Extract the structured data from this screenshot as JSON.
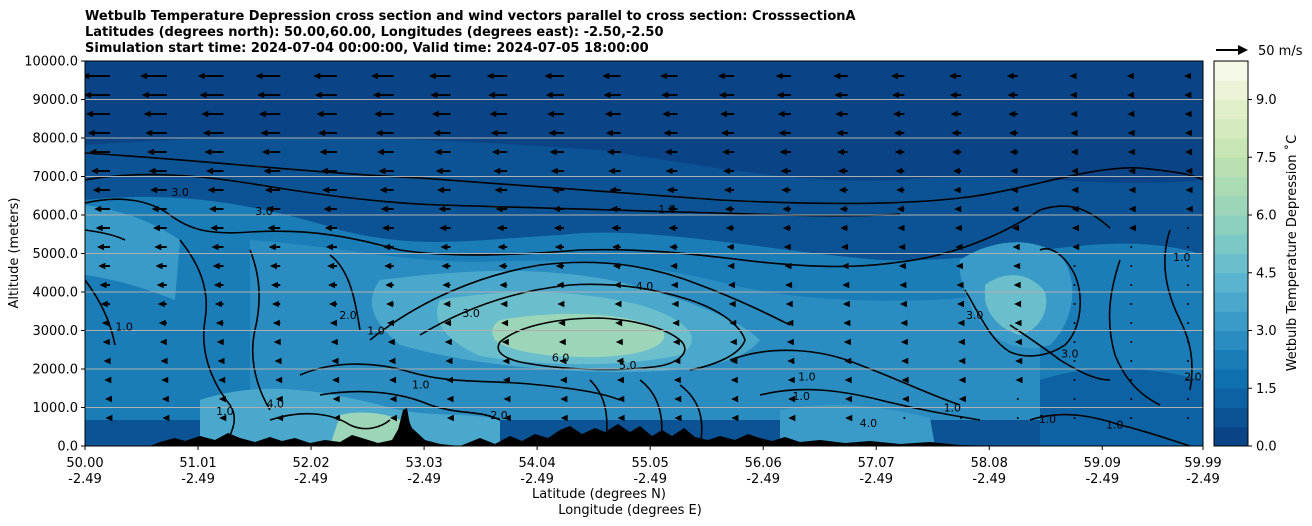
{
  "chart_data": {
    "type": "heatmap",
    "title": [
      "Wetbulb Temperature Depression cross section and wind vectors parallel to cross section: CrosssectionA",
      "Latitudes (degrees north): 50.00,60.00, Longitudes (degrees east): -2.50,-2.50",
      "Simulation start time: 2024-07-04 00:00:00, Valid time: 2024-07-05 18:00:00"
    ],
    "xlabel_lines": [
      "Latitude (degrees N)",
      "Longitude (degrees E)"
    ],
    "ylabel": "Altitude (meters)",
    "x_ticks_lat": [
      "50.00",
      "51.01",
      "52.02",
      "53.03",
      "54.04",
      "55.05",
      "56.06",
      "57.07",
      "58.08",
      "59.09",
      "59.99"
    ],
    "x_ticks_lon": [
      "-2.49",
      "-2.49",
      "-2.49",
      "-2.49",
      "-2.49",
      "-2.49",
      "-2.49",
      "-2.49",
      "-2.49",
      "-2.49",
      "-2.49"
    ],
    "x_values": [
      50.0,
      51.01,
      52.02,
      53.03,
      54.04,
      55.05,
      56.06,
      57.07,
      58.08,
      59.09,
      59.99
    ],
    "xlim": [
      50.0,
      59.99
    ],
    "y_ticks": [
      "0.0",
      "1000.0",
      "2000.0",
      "3000.0",
      "4000.0",
      "5000.0",
      "6000.0",
      "7000.0",
      "8000.0",
      "9000.0",
      "10000.0"
    ],
    "ylim": [
      0,
      10000
    ],
    "grid": "horizontal",
    "colorbar": {
      "label": "Wetbulb Temperature Depression ˚C",
      "ticks": [
        "0.0",
        "1.5",
        "3.0",
        "4.5",
        "6.0",
        "7.5",
        "9.0"
      ],
      "range": [
        0,
        10
      ],
      "levels": 20,
      "colors": [
        "#0a4486",
        "#0b5394",
        "#0d62a4",
        "#0f70b0",
        "#1a7db8",
        "#2a8cc0",
        "#3a9bc8",
        "#4aa8cd",
        "#5ab4cf",
        "#6bbfcc",
        "#7cc8c6",
        "#8ccfbf",
        "#9cd5b8",
        "#abdbb3",
        "#badfb0",
        "#c8e5b6",
        "#d5eabf",
        "#e1efc9",
        "#ebf4d6",
        "#f4f9e8"
      ]
    },
    "wind_key": {
      "label": "50 m/s",
      "speed": 50
    },
    "contour_labels": [
      {
        "text": "1.0",
        "lat": 55.2,
        "alt": 6050
      },
      {
        "text": "4.0",
        "lat": 55.0,
        "alt": 4050
      },
      {
        "text": "3.0",
        "lat": 53.45,
        "alt": 3350
      },
      {
        "text": "6.0",
        "lat": 54.25,
        "alt": 2200
      },
      {
        "text": "5.0",
        "lat": 54.85,
        "alt": 2000
      },
      {
        "text": "2.0",
        "lat": 52.35,
        "alt": 3300
      },
      {
        "text": "3.0",
        "lat": 50.85,
        "alt": 6500
      },
      {
        "text": "3.0",
        "lat": 51.6,
        "alt": 6000
      },
      {
        "text": "1.0",
        "lat": 50.35,
        "alt": 3000
      },
      {
        "text": "1.0",
        "lat": 52.6,
        "alt": 2900
      },
      {
        "text": "1.0",
        "lat": 53.0,
        "alt": 1500
      },
      {
        "text": "1.0",
        "lat": 56.4,
        "alt": 1200
      },
      {
        "text": "1.0",
        "lat": 56.45,
        "alt": 1700
      },
      {
        "text": "1.0",
        "lat": 57.75,
        "alt": 900
      },
      {
        "text": "3.0",
        "lat": 57.95,
        "alt": 3300
      },
      {
        "text": "3.0",
        "lat": 58.8,
        "alt": 2300
      },
      {
        "text": "1.0",
        "lat": 59.8,
        "alt": 4800
      },
      {
        "text": "2.0",
        "lat": 59.9,
        "alt": 1700
      },
      {
        "text": "2.0",
        "lat": 53.7,
        "alt": 700
      },
      {
        "text": "4.0",
        "lat": 57.0,
        "alt": 500
      },
      {
        "text": "1.0",
        "lat": 58.6,
        "alt": 600
      },
      {
        "text": "1.0",
        "lat": 51.25,
        "alt": 800
      },
      {
        "text": "4.0",
        "lat": 51.7,
        "alt": 1000
      },
      {
        "text": "1.0",
        "lat": 59.2,
        "alt": 450
      }
    ]
  }
}
